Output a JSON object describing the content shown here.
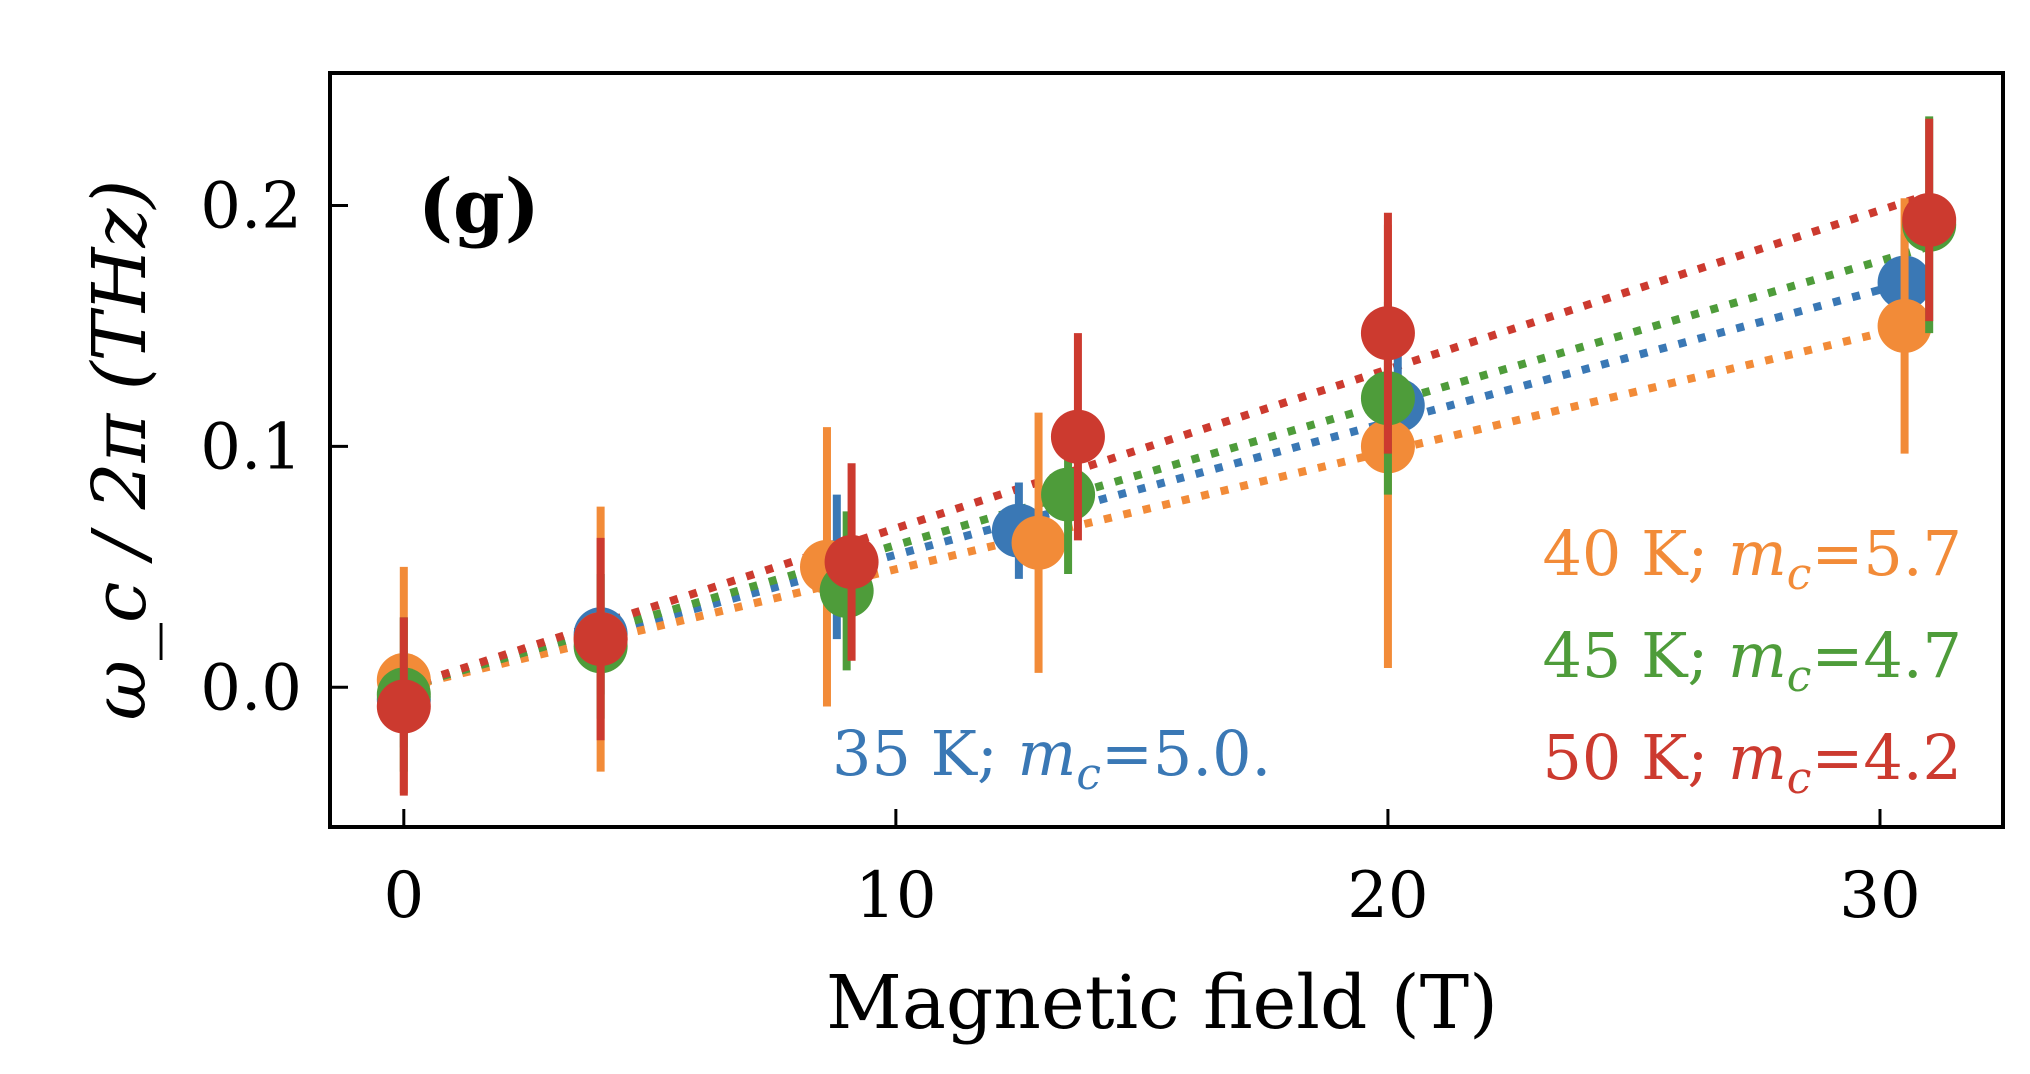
{
  "chart_data": {
    "type": "scatter",
    "panel_label": "(g)",
    "xlabel": "Magnetic field (T)",
    "ylabel": "ω_c / 2π  (THz)",
    "xlim": [
      -1.5,
      32.5
    ],
    "ylim": [
      -0.058,
      0.255
    ],
    "x_ticks": [
      0,
      10,
      20,
      30
    ],
    "x_tick_labels": [
      "0",
      "10",
      "20",
      "30"
    ],
    "y_ticks": [
      0.0,
      0.1,
      0.2
    ],
    "y_tick_labels": [
      "0.0",
      "0.1",
      "0.2"
    ],
    "grid": false,
    "series": [
      {
        "legend_temp": "35 K; ",
        "legend_m": "m",
        "legend_sub": "c",
        "legend_value": "=5.0.",
        "color": "#3a78b5",
        "fit_slope": 0.0055,
        "points": [
          {
            "x": 0,
            "y": -0.005,
            "err": 0.02
          },
          {
            "x": 4,
            "y": 0.022,
            "err": 0.025
          },
          {
            "x": 8.8,
            "y": 0.05,
            "err": 0.03
          },
          {
            "x": 12.5,
            "y": 0.065,
            "err": 0.02
          },
          {
            "x": 20.2,
            "y": 0.117,
            "err": 0.025
          },
          {
            "x": 30.5,
            "y": 0.168,
            "err": 0.02
          }
        ]
      },
      {
        "legend_temp": "40 K; ",
        "legend_m": "m",
        "legend_sub": "c",
        "legend_value": "=5.7",
        "color": "#f28b38",
        "fit_slope": 0.0049,
        "points": [
          {
            "x": 0,
            "y": 0.003,
            "err": 0.047
          },
          {
            "x": 4,
            "y": 0.02,
            "err": 0.055
          },
          {
            "x": 8.6,
            "y": 0.05,
            "err": 0.058
          },
          {
            "x": 12.9,
            "y": 0.06,
            "err": 0.054
          },
          {
            "x": 20,
            "y": 0.1,
            "err": 0.092
          },
          {
            "x": 30.5,
            "y": 0.15,
            "err": 0.053
          }
        ]
      },
      {
        "legend_temp": "45 K; ",
        "legend_m": "m",
        "legend_sub": "c",
        "legend_value": "=4.7",
        "color": "#4e9c3a",
        "fit_slope": 0.0059,
        "points": [
          {
            "x": 0,
            "y": -0.003,
            "err": 0.032
          },
          {
            "x": 4,
            "y": 0.017,
            "err": 0.03
          },
          {
            "x": 9,
            "y": 0.04,
            "err": 0.033
          },
          {
            "x": 13.5,
            "y": 0.08,
            "err": 0.033
          },
          {
            "x": 20,
            "y": 0.12,
            "err": 0.04
          },
          {
            "x": 31,
            "y": 0.192,
            "err": 0.045
          }
        ]
      },
      {
        "legend_temp": "50 K; ",
        "legend_m": "m",
        "legend_sub": "c",
        "legend_value": "=4.2",
        "color": "#cc3a2f",
        "fit_slope": 0.0066,
        "points": [
          {
            "x": 0,
            "y": -0.008,
            "err": 0.037
          },
          {
            "x": 4,
            "y": 0.02,
            "err": 0.042
          },
          {
            "x": 9.1,
            "y": 0.052,
            "err": 0.041
          },
          {
            "x": 13.7,
            "y": 0.104,
            "err": 0.043
          },
          {
            "x": 20,
            "y": 0.147,
            "err": 0.05
          },
          {
            "x": 31,
            "y": 0.194,
            "err": 0.042
          }
        ]
      }
    ]
  }
}
